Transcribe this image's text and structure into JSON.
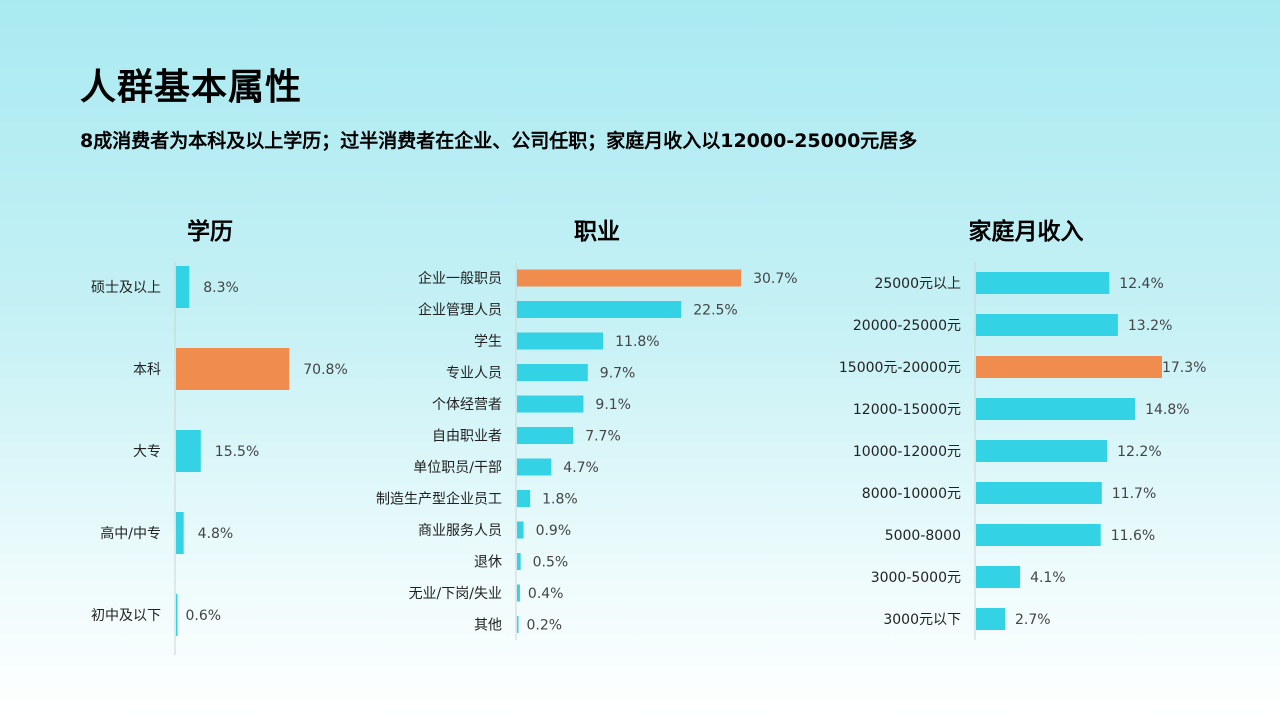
{
  "page": {
    "title": "人群基本属性",
    "subtitle": "8成消费者为本科及以上学历；过半消费者在企业、公司任职；家庭月收入以12000-25000元居多"
  },
  "colors": {
    "normal": "#33d2e4",
    "highlight": "#f08c4e",
    "axis": "#c9d4d6"
  },
  "chart_data": [
    {
      "type": "bar",
      "orientation": "horizontal",
      "title": "学历",
      "categories": [
        "硕士及以上",
        "本科",
        "大专",
        "高中/中专",
        "初中及以下"
      ],
      "values": [
        8.3,
        70.8,
        15.5,
        4.8,
        0.6
      ],
      "value_labels": [
        "8.3%",
        "70.8%",
        "15.5%",
        "4.8%",
        "0.6%"
      ],
      "highlight_index": 1,
      "xlim": [
        0,
        100
      ]
    },
    {
      "type": "bar",
      "orientation": "horizontal",
      "title": "职业",
      "categories": [
        "企业一般职员",
        "企业管理人员",
        "学生",
        "专业人员",
        "个体经营者",
        "自由职业者",
        "单位职员/干部",
        "制造生产型企业员工",
        "商业服务人员",
        "退休",
        "无业/下岗/失业",
        "其他"
      ],
      "values": [
        30.7,
        22.5,
        11.8,
        9.7,
        9.1,
        7.7,
        4.7,
        1.8,
        0.9,
        0.5,
        0.4,
        0.2
      ],
      "value_labels": [
        "30.7%",
        "22.5%",
        "11.8%",
        "9.7%",
        "9.1%",
        "7.7%",
        "4.7%",
        "1.8%",
        "0.9%",
        "0.5%",
        "0.4%",
        "0.2%"
      ],
      "highlight_index": 0,
      "xlim": [
        0,
        50
      ]
    },
    {
      "type": "bar",
      "orientation": "horizontal",
      "title": "家庭月收入",
      "categories": [
        "25000元以上",
        "20000-25000元",
        "15000元-20000元",
        "12000-15000元",
        "10000-12000元",
        "8000-10000元",
        "5000-8000",
        "3000-5000元",
        "3000元以下"
      ],
      "values": [
        12.4,
        13.2,
        17.3,
        14.8,
        12.2,
        11.7,
        11.6,
        4.1,
        2.7
      ],
      "value_labels": [
        "12.4%",
        "13.2%",
        "17.3%",
        "14.8%",
        "12.2%",
        "11.7%",
        "11.6%",
        "4.1%",
        "2.7%"
      ],
      "highlight_index": 2,
      "xlim": [
        0,
        18.5
      ]
    }
  ]
}
